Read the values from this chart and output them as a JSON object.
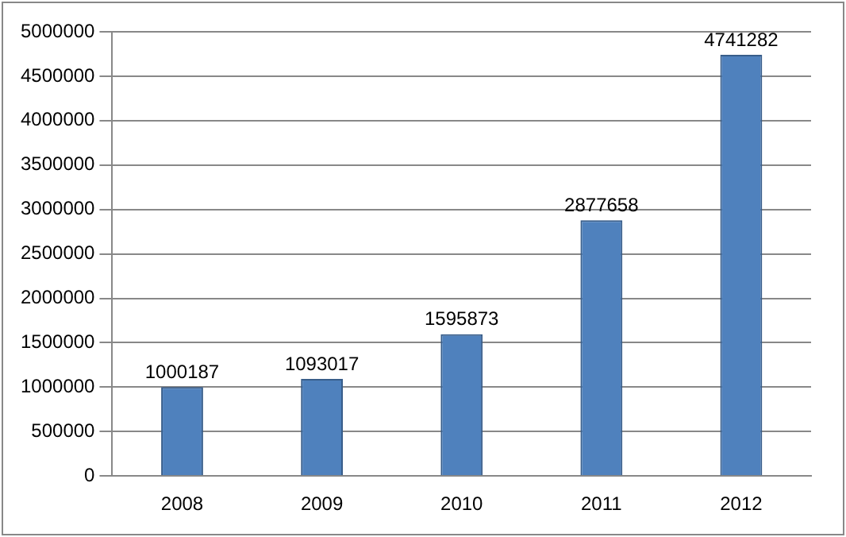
{
  "chart_data": {
    "type": "bar",
    "categories": [
      "2008",
      "2009",
      "2010",
      "2011",
      "2012"
    ],
    "values": [
      1000187,
      1093017,
      1595873,
      2877658,
      4741282
    ],
    "color": "#4f81bd",
    "ylim": [
      0,
      5000000
    ],
    "yticks": [
      0,
      500000,
      1000000,
      1500000,
      2000000,
      2500000,
      3000000,
      3500000,
      4000000,
      4500000,
      5000000
    ],
    "grid": "y",
    "data_labels": true,
    "legend": false
  }
}
